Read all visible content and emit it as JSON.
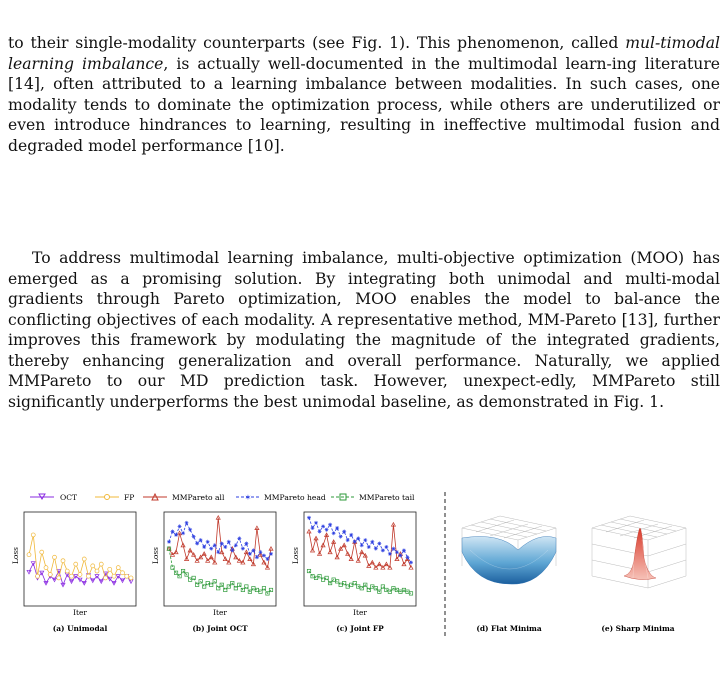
{
  "paragraphs": {
    "p1_before": "to their single-modality counterparts (see Fig. 1). This phenomenon, called ",
    "p1_term": "mul-timodal learning imbalance",
    "p1_after": ", is actually well-documented in the multimodal learn-ing literature [14], often attributed to a learning imbalance between modalities. In such cases, one modality tends to dominate the optimization process, while others are underutilized or even introduce hindrances to learning, resulting in ineffective multimodal fusion and degraded model performance [10].",
    "p2": "To address multimodal learning imbalance, multi-objective optimization (MOO) has emerged as a promising solution. By integrating both unimodal and multi-modal gradients through Pareto optimization, MOO enables the model to bal-ance the conflicting objectives of each modality. A representative method, MM-Pareto [13], further improves this framework by modulating the magnitude of the integrated gradients, thereby enhancing generalization and overall performance. Naturally, we applied MMPareto to our MD prediction task. However, unexpect-edly, MMPareto still significantly underperforms the best unimodal baseline, as demonstrated in Fig. 1."
  },
  "figure": {
    "legend": [
      "OCT",
      "FP",
      "MMPareto all",
      "MMPareto head",
      "MMPareto tail"
    ],
    "colors": {
      "OCT": "#8a2be2",
      "FP": "#f0b83a",
      "all": "#c0392b",
      "head": "#2d3fe0",
      "tail": "#2e9a3a"
    },
    "axis_y": "Loss",
    "axis_x": "Iter",
    "captions": [
      "(a) Unimodal",
      "(b) Joint OCT",
      "(c) Joint FP",
      "(d) Flat Minima",
      "(e) Sharp Minima"
    ]
  },
  "chart_data": [
    {
      "type": "line",
      "title": "(a) Unimodal",
      "xlabel": "Iter",
      "ylabel": "Loss",
      "x": [
        1,
        2,
        3,
        4,
        5,
        6,
        7,
        8,
        9,
        10,
        11,
        12,
        13,
        14,
        15,
        16,
        17,
        18,
        19,
        20,
        21,
        22,
        23,
        24,
        25
      ],
      "series": [
        {
          "name": "OCT",
          "values": [
            0.35,
            0.45,
            0.28,
            0.34,
            0.22,
            0.3,
            0.26,
            0.36,
            0.2,
            0.32,
            0.24,
            0.3,
            0.26,
            0.22,
            0.31,
            0.25,
            0.3,
            0.24,
            0.33,
            0.27,
            0.22,
            0.3,
            0.25,
            0.3,
            0.24
          ]
        },
        {
          "name": "FP",
          "values": [
            0.55,
            0.78,
            0.3,
            0.58,
            0.4,
            0.32,
            0.52,
            0.28,
            0.48,
            0.36,
            0.3,
            0.44,
            0.32,
            0.5,
            0.3,
            0.42,
            0.36,
            0.44,
            0.28,
            0.38,
            0.3,
            0.4,
            0.34,
            0.3,
            0.28
          ]
        }
      ]
    },
    {
      "type": "line",
      "title": "(b) Joint OCT",
      "xlabel": "Iter",
      "ylabel": "Loss",
      "x": [
        1,
        2,
        3,
        4,
        5,
        6,
        7,
        8,
        9,
        10,
        11,
        12,
        13,
        14,
        15,
        16,
        17,
        18,
        19,
        20,
        21,
        22,
        23,
        24,
        25,
        26,
        27,
        28,
        29,
        30
      ],
      "series": [
        {
          "name": "MMPareto all",
          "values": [
            0.62,
            0.55,
            0.58,
            0.8,
            0.66,
            0.5,
            0.6,
            0.55,
            0.48,
            0.52,
            0.56,
            0.48,
            0.52,
            0.46,
            0.98,
            0.58,
            0.5,
            0.46,
            0.62,
            0.52,
            0.48,
            0.46,
            0.58,
            0.5,
            0.44,
            0.86,
            0.55,
            0.46,
            0.4,
            0.62
          ]
        },
        {
          "name": "MMPareto head",
          "values": [
            0.7,
            0.82,
            0.78,
            0.88,
            0.8,
            0.92,
            0.84,
            0.76,
            0.68,
            0.72,
            0.64,
            0.7,
            0.62,
            0.66,
            0.58,
            0.68,
            0.64,
            0.7,
            0.6,
            0.66,
            0.74,
            0.62,
            0.68,
            0.56,
            0.6,
            0.52,
            0.58,
            0.54,
            0.5,
            0.56
          ]
        },
        {
          "name": "MMPareto tail",
          "values": [
            0.62,
            0.4,
            0.34,
            0.3,
            0.36,
            0.32,
            0.26,
            0.28,
            0.2,
            0.24,
            0.18,
            0.22,
            0.2,
            0.24,
            0.16,
            0.2,
            0.14,
            0.18,
            0.22,
            0.16,
            0.2,
            0.14,
            0.18,
            0.12,
            0.16,
            0.14,
            0.12,
            0.16,
            0.1,
            0.14
          ]
        }
      ]
    },
    {
      "type": "line",
      "title": "(c) Joint FP",
      "xlabel": "Iter",
      "ylabel": "Loss",
      "x": [
        1,
        2,
        3,
        4,
        5,
        6,
        7,
        8,
        9,
        10,
        11,
        12,
        13,
        14,
        15,
        16,
        17,
        18,
        19,
        20,
        21,
        22,
        23,
        24,
        25,
        26,
        27,
        28,
        29,
        30
      ],
      "series": [
        {
          "name": "MMPareto all",
          "values": [
            0.82,
            0.6,
            0.74,
            0.56,
            0.66,
            0.78,
            0.58,
            0.7,
            0.52,
            0.62,
            0.66,
            0.56,
            0.5,
            0.7,
            0.48,
            0.58,
            0.54,
            0.42,
            0.46,
            0.4,
            0.44,
            0.4,
            0.44,
            0.4,
            0.9,
            0.5,
            0.56,
            0.44,
            0.5,
            0.4
          ]
        },
        {
          "name": "MMPareto head",
          "values": [
            0.98,
            0.86,
            0.92,
            0.82,
            0.88,
            0.84,
            0.9,
            0.8,
            0.86,
            0.76,
            0.82,
            0.72,
            0.78,
            0.7,
            0.74,
            0.66,
            0.72,
            0.64,
            0.7,
            0.62,
            0.68,
            0.6,
            0.64,
            0.56,
            0.62,
            0.58,
            0.54,
            0.6,
            0.52,
            0.46
          ]
        },
        {
          "name": "MMPareto tail",
          "values": [
            0.36,
            0.3,
            0.28,
            0.3,
            0.26,
            0.28,
            0.22,
            0.26,
            0.24,
            0.2,
            0.22,
            0.18,
            0.2,
            0.22,
            0.18,
            0.16,
            0.2,
            0.14,
            0.18,
            0.16,
            0.12,
            0.18,
            0.14,
            0.12,
            0.16,
            0.14,
            0.12,
            0.14,
            0.12,
            0.1
          ]
        }
      ]
    }
  ]
}
